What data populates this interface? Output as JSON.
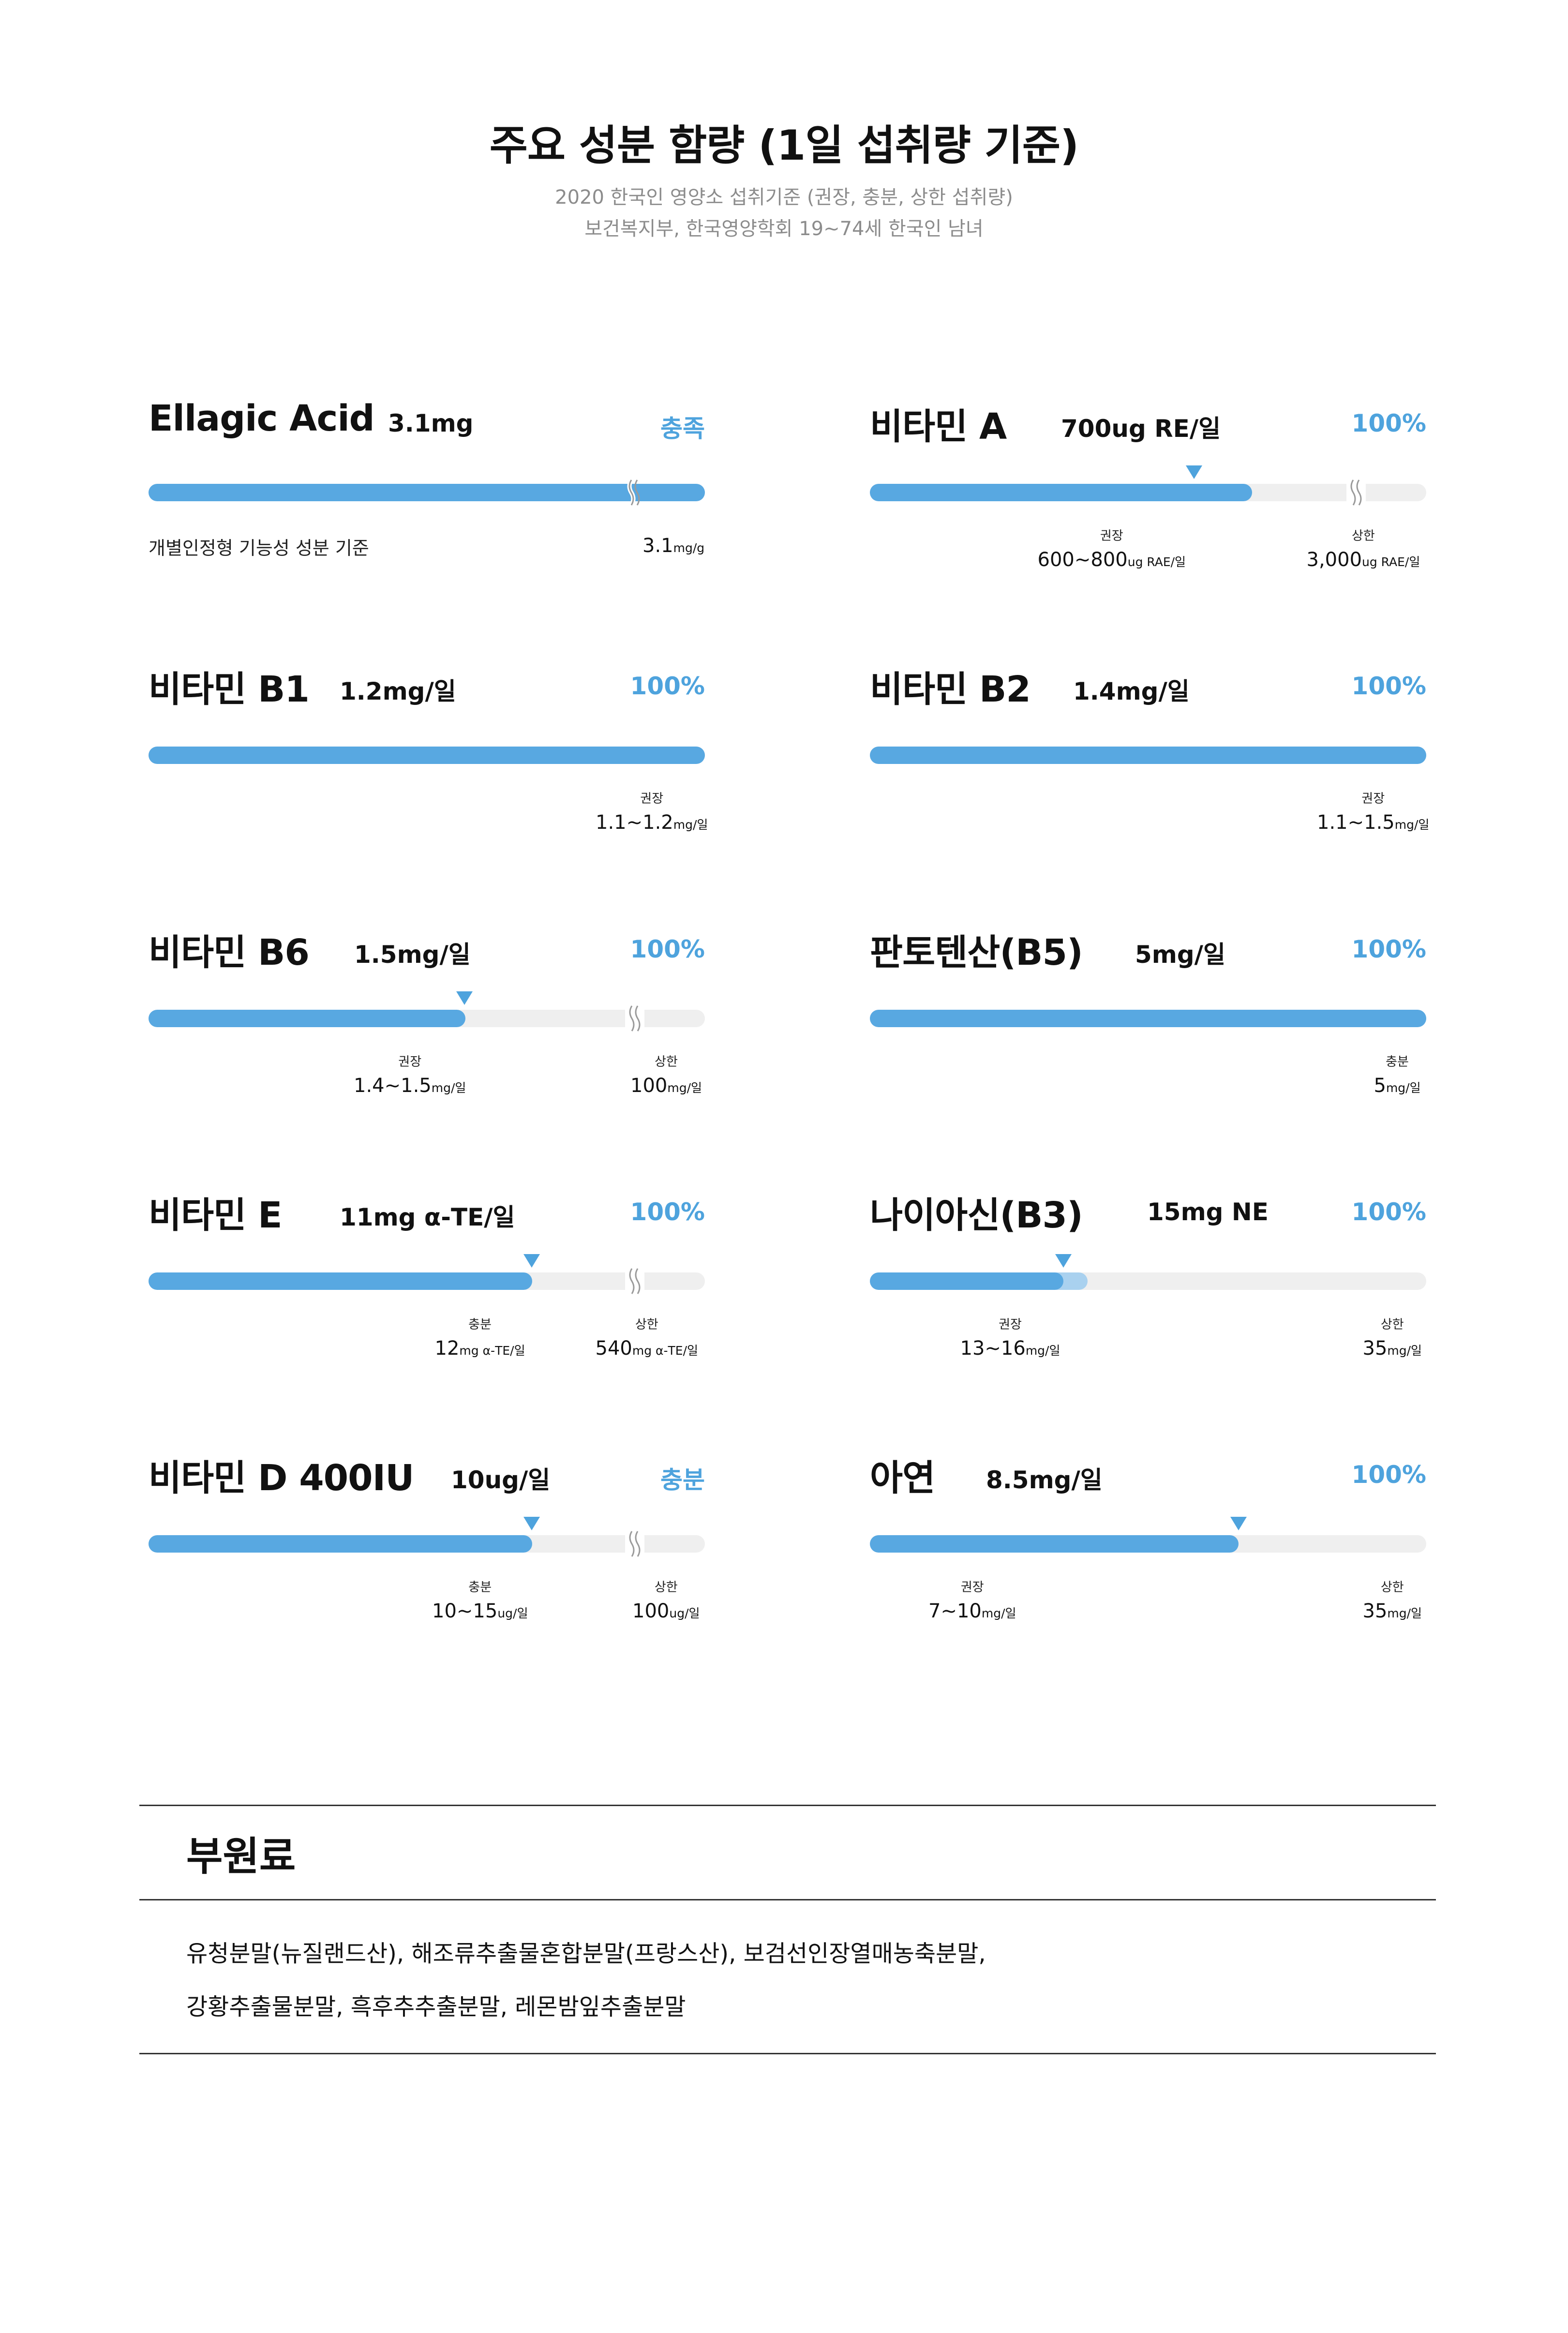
{
  "header": {
    "title": "주요 성분 함량 (1일 섭취량 기준)",
    "subtitle_line1": "2020 한국인 영양소 섭취기준 (권장, 충분, 상한 섭취량)",
    "subtitle_line2": "보건복지부, 한국영양학회  19~74세 한국인 남녀"
  },
  "colors": {
    "accent": "#4ea3dd",
    "bar_fill": "#58a8e1",
    "bar_track": "#efefef",
    "bar_partial": "#a9d1ef"
  },
  "nutrients": [
    {
      "name": "Ellagic Acid",
      "amount": "3.1mg",
      "status": "충족",
      "fill_fraction": 1.0,
      "note": "개별인정형 기능성 성분 기준",
      "refs": [
        {
          "key": "",
          "value": "3.1",
          "unit": "mg/g"
        }
      ]
    },
    {
      "name": "비타민 A",
      "amount": "700ug RE/일",
      "status": "100%",
      "fill_fraction": 0.69,
      "refs": [
        {
          "key": "권장",
          "value": "600~800",
          "unit": "ug RAE/일"
        },
        {
          "key": "상한",
          "value": "3,000",
          "unit": "ug RAE/일"
        }
      ]
    },
    {
      "name": "비타민 B1",
      "amount": "1.2mg/일",
      "status": "100%",
      "fill_fraction": 1.0,
      "refs": [
        {
          "key": "권장",
          "value": "1.1~1.2",
          "unit": "mg/일"
        }
      ]
    },
    {
      "name": "비타민 B2",
      "amount": "1.4mg/일",
      "status": "100%",
      "fill_fraction": 1.0,
      "refs": [
        {
          "key": "권장",
          "value": "1.1~1.5",
          "unit": "mg/일"
        }
      ]
    },
    {
      "name": "비타민 B6",
      "amount": "1.5mg/일",
      "status": "100%",
      "fill_fraction": 0.57,
      "refs": [
        {
          "key": "권장",
          "value": "1.4~1.5",
          "unit": "mg/일"
        },
        {
          "key": "상한",
          "value": "100",
          "unit": "mg/일"
        }
      ]
    },
    {
      "name": "판토텐산(B5)",
      "amount": "5mg/일",
      "status": "100%",
      "fill_fraction": 1.0,
      "refs": [
        {
          "key": "충분",
          "value": "5",
          "unit": "mg/일"
        }
      ]
    },
    {
      "name": "비타민 E",
      "amount": "11mg α-TE/일",
      "status": "100%",
      "fill_fraction": 0.69,
      "refs": [
        {
          "key": "충분",
          "value": "12",
          "unit": "mg α-TE/일"
        },
        {
          "key": "상한",
          "value": "540",
          "unit": "mg α-TE/일"
        }
      ]
    },
    {
      "name": "나이아신(B3)",
      "amount": "15mg NE",
      "status": "100%",
      "fill_fraction": 0.35,
      "partial_fraction": 0.39,
      "refs": [
        {
          "key": "권장",
          "value": "13~16",
          "unit": "mg/일"
        },
        {
          "key": "상한",
          "value": "35",
          "unit": "mg/일"
        }
      ]
    },
    {
      "name": "비타민 D 400IU",
      "amount": "10ug/일",
      "status": "충분",
      "fill_fraction": 0.69,
      "refs": [
        {
          "key": "충분",
          "value": "10~15",
          "unit": "ug/일"
        },
        {
          "key": "상한",
          "value": "100",
          "unit": "ug/일"
        }
      ]
    },
    {
      "name": "아연",
      "amount": "8.5mg/일",
      "status": "100%",
      "fill_fraction": 0.66,
      "refs": [
        {
          "key": "권장",
          "value": "7~10",
          "unit": "mg/일"
        },
        {
          "key": "상한",
          "value": "35",
          "unit": "mg/일"
        }
      ]
    }
  ],
  "raw_materials": {
    "title": "부원료",
    "line1": "유청분말(뉴질랜드산), 해조류추출물혼합분말(프랑스산), 보검선인장열매농축분말,",
    "line2": "강황추출물분말, 흑후추추출분말, 레몬밤잎추출분말"
  }
}
